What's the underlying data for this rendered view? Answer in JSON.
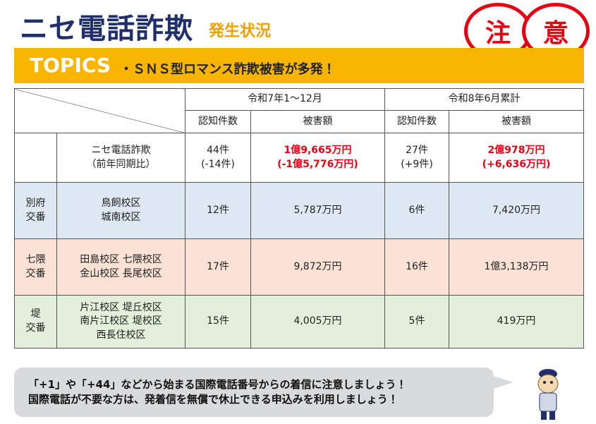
{
  "header": {
    "title": "ニセ電話詐欺",
    "subtitle": "発生状況",
    "caution": [
      "注",
      "意"
    ]
  },
  "topics": {
    "label": "TOPICS",
    "text": "・ＳＮＳ型ロマンス詐欺被害が多発！"
  },
  "table": {
    "period_headers": [
      "令和7年1～12月",
      "令和8年6月累計"
    ],
    "column_headers": [
      "認知件数",
      "被害額",
      "認知件数",
      "被害額"
    ],
    "total": {
      "label": [
        "ニセ電話詐欺",
        "（前年同期比）"
      ],
      "cells": [
        [
          "44件",
          "(-14件)"
        ],
        [
          "1億9,665万円",
          "(-1億5,776万円)"
        ],
        [
          "27件",
          "(+9件)"
        ],
        [
          "2億978万円",
          "(+6,636万円)"
        ]
      ]
    },
    "rows": [
      {
        "station": [
          "別府",
          "交番"
        ],
        "districts": [
          "鳥飼校区",
          "城南校区"
        ],
        "cells": [
          "12件",
          "5,787万円",
          "6件",
          "7,420万円"
        ]
      },
      {
        "station": [
          "七隈",
          "交番"
        ],
        "districts": [
          "田島校区 七隈校区",
          "金山校区 長尾校区"
        ],
        "cells": [
          "17件",
          "9,872万円",
          "16件",
          "1億3,138万円"
        ]
      },
      {
        "station": [
          "堤",
          "交番"
        ],
        "districts": [
          "片江校区 堤丘校区",
          "南片江校区 堤校区",
          "西長住校区"
        ],
        "cells": [
          "15件",
          "4,005万円",
          "5件",
          "419万円"
        ]
      }
    ]
  },
  "notice": [
    "「+1」や「+44」などから始まる国際電話番号からの着信に注意しましょう！",
    "国際電話が不要な方は、発着信を無償で休止できる申込みを利用しましょう！"
  ]
}
